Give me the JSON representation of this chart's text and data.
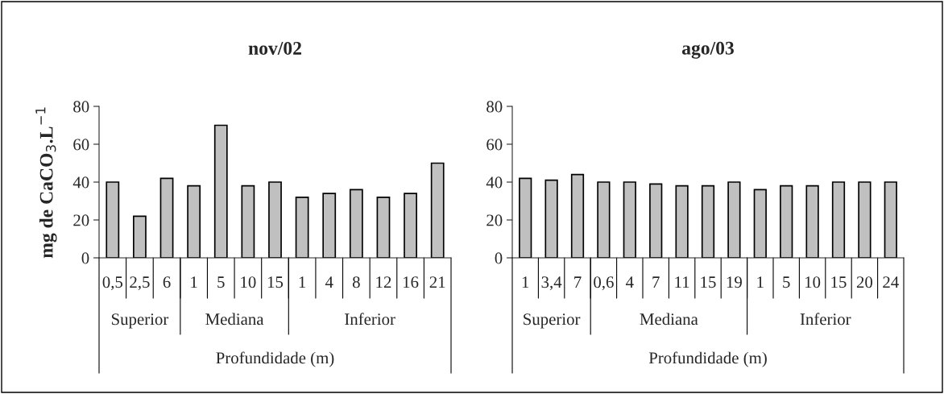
{
  "chart_data": [
    {
      "type": "bar",
      "title": "nov/02",
      "ylabel": "mg de CaCO$_{3}$.L$^{−1}$",
      "xlabel": "Profundidade (m)",
      "categories": [
        "0,5",
        "2,5",
        "6",
        "1",
        "5",
        "10",
        "15",
        "1",
        "4",
        "8",
        "12",
        "16",
        "21"
      ],
      "annotations": [
        "Superior",
        "Mediana",
        "Inferior"
      ],
      "values": [
        40,
        22,
        42,
        38,
        70,
        38,
        40,
        32,
        34,
        36,
        32,
        34,
        50
      ],
      "color": "#c0c0c0",
      "ylim": [
        0,
        80
      ],
      "yticks": [
        0,
        20,
        40,
        60,
        80
      ],
      "grid": false,
      "legend": false
    },
    {
      "type": "bar",
      "title": "ago/03",
      "xlabel": "Profundidade (m)",
      "categories": [
        "1",
        "3,4",
        "7",
        "0,6",
        "4",
        "7",
        "11",
        "15",
        "19",
        "1",
        "5",
        "10",
        "15",
        "20",
        "24"
      ],
      "annotations": [
        "Superior",
        "Mediana",
        "Inferior"
      ],
      "values": [
        42,
        41,
        44,
        40,
        40,
        39,
        38,
        38,
        40,
        36,
        38,
        38,
        40,
        40,
        40
      ],
      "color": "#c0c0c0",
      "ylim": [
        0,
        80
      ],
      "yticks": [
        0,
        20,
        40,
        60,
        80
      ],
      "grid": false,
      "legend": false
    }
  ]
}
